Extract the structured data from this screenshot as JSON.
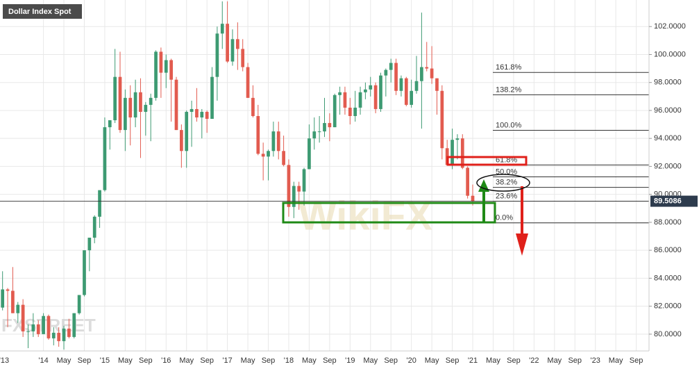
{
  "chart_data": {
    "type": "candlestick",
    "title": "Dollar Index Spot",
    "x": [
      "2013-05",
      "2013-06",
      "2013-07",
      "2013-08",
      "2013-09",
      "2013-10",
      "2013-11",
      "2013-12",
      "2014-01",
      "2014-02",
      "2014-03",
      "2014-04",
      "2014-05",
      "2014-06",
      "2014-07",
      "2014-08",
      "2014-09",
      "2014-10",
      "2014-11",
      "2014-12",
      "2015-01",
      "2015-02",
      "2015-03",
      "2015-04",
      "2015-05",
      "2015-06",
      "2015-07",
      "2015-08",
      "2015-09",
      "2015-10",
      "2015-11",
      "2015-12",
      "2016-01",
      "2016-02",
      "2016-03",
      "2016-04",
      "2016-05",
      "2016-06",
      "2016-07",
      "2016-08",
      "2016-09",
      "2016-10",
      "2016-11",
      "2016-12",
      "2017-01",
      "2017-02",
      "2017-03",
      "2017-04",
      "2017-05",
      "2017-06",
      "2017-07",
      "2017-08",
      "2017-09",
      "2017-10",
      "2017-11",
      "2017-12",
      "2018-01",
      "2018-02",
      "2018-03",
      "2018-04",
      "2018-05",
      "2018-06",
      "2018-07",
      "2018-08",
      "2018-09",
      "2018-10",
      "2018-11",
      "2018-12",
      "2019-01",
      "2019-02",
      "2019-03",
      "2019-04",
      "2019-05",
      "2019-06",
      "2019-07",
      "2019-08",
      "2019-09",
      "2019-10",
      "2019-11",
      "2019-12",
      "2020-01",
      "2020-02",
      "2020-03",
      "2020-04",
      "2020-05",
      "2020-06",
      "2020-07",
      "2020-08",
      "2020-09",
      "2020-10",
      "2020-11",
      "2020-12",
      "2021-01"
    ],
    "open": [
      81.9,
      83.2,
      83.1,
      81.5,
      82.1,
      80.2,
      80.2,
      80.7,
      80.0,
      81.3,
      79.7,
      80.1,
      79.5,
      80.4,
      79.8,
      81.5,
      82.8,
      86.0,
      86.9,
      88.4,
      90.3,
      94.8,
      95.3,
      98.4,
      94.6,
      96.9,
      95.5,
      97.3,
      95.9,
      96.4,
      96.9,
      100.2,
      98.7,
      99.6,
      98.2,
      94.6,
      93.1,
      95.9,
      96.1,
      95.5,
      95.9,
      95.4,
      98.4,
      101.5,
      102.2,
      99.5,
      101.1,
      100.4,
      99.1,
      96.9,
      95.6,
      92.9,
      92.7,
      93.1,
      94.5,
      93.1,
      92.1,
      89.1,
      90.6,
      90.2,
      91.8,
      94.0,
      94.5,
      94.5,
      95.1,
      94.8,
      97.1,
      97.3,
      96.2,
      95.6,
      96.2,
      97.3,
      97.5,
      97.8,
      96.1,
      98.5,
      98.9,
      99.4,
      97.4,
      98.3,
      96.4,
      97.4,
      98.1,
      99.1,
      99.0,
      98.3,
      97.4,
      93.3,
      92.1,
      93.9,
      94.0,
      91.9,
      89.9
    ],
    "high": [
      84.5,
      83.3,
      84.8,
      82.3,
      82.5,
      80.7,
      81.5,
      81.0,
      81.5,
      81.4,
      80.5,
      80.5,
      80.6,
      81.1,
      81.5,
      82.8,
      86.0,
      86.8,
      88.5,
      90.1,
      95.5,
      95.3,
      100.4,
      100.2,
      97.5,
      97.8,
      98.2,
      98.3,
      96.6,
      97.2,
      100.3,
      100.5,
      100.0,
      99.7,
      98.4,
      95.0,
      96.0,
      96.7,
      97.6,
      96.1,
      96.0,
      99.1,
      102.0,
      103.8,
      103.8,
      101.8,
      102.3,
      101.1,
      99.4,
      97.8,
      96.4,
      93.7,
      93.2,
      95.2,
      95.2,
      94.2,
      92.5,
      90.9,
      90.9,
      91.9,
      95.0,
      95.5,
      95.6,
      96.9,
      95.8,
      97.2,
      97.7,
      97.7,
      96.9,
      97.4,
      97.7,
      98.0,
      98.4,
      98.0,
      98.7,
      99.0,
      99.7,
      99.7,
      98.5,
      98.4,
      98.2,
      99.9,
      103.0,
      100.9,
      100.6,
      98.3,
      97.8,
      93.9,
      94.7,
      94.3,
      94.3,
      92.0,
      90.7
    ],
    "low": [
      81.7,
      80.5,
      81.5,
      80.8,
      79.8,
      79.0,
      79.8,
      79.8,
      80.0,
      79.6,
      79.2,
      79.1,
      78.9,
      79.7,
      79.7,
      81.4,
      82.7,
      84.5,
      86.5,
      87.6,
      90.2,
      93.2,
      95.1,
      94.4,
      93.1,
      93.5,
      94.8,
      92.6,
      94.2,
      93.8,
      96.7,
      96.9,
      97.6,
      95.2,
      94.6,
      91.9,
      91.9,
      93.4,
      95.2,
      94.0,
      94.4,
      95.4,
      96.7,
      100.4,
      99.4,
      99.2,
      98.9,
      98.8,
      96.9,
      95.5,
      92.8,
      91.0,
      91.0,
      92.7,
      92.5,
      92.0,
      88.4,
      88.3,
      88.9,
      89.2,
      91.8,
      93.2,
      93.7,
      94.1,
      93.8,
      94.8,
      95.7,
      95.7,
      95.0,
      95.2,
      95.7,
      96.8,
      97.0,
      95.8,
      95.9,
      97.0,
      98.0,
      97.1,
      97.0,
      96.3,
      96.2,
      97.2,
      94.7,
      98.8,
      97.9,
      95.7,
      92.5,
      92.1,
      91.8,
      92.5,
      91.8,
      89.7,
      89.2
    ],
    "close": [
      83.2,
      83.1,
      81.5,
      82.1,
      80.2,
      80.2,
      80.7,
      80.0,
      81.3,
      79.7,
      80.1,
      79.5,
      80.4,
      79.8,
      81.5,
      82.8,
      86.0,
      86.9,
      88.4,
      90.3,
      94.8,
      95.3,
      98.4,
      94.6,
      96.9,
      95.5,
      97.3,
      95.9,
      96.4,
      96.9,
      100.2,
      98.7,
      99.6,
      98.2,
      94.6,
      93.1,
      95.9,
      96.1,
      95.5,
      95.9,
      95.4,
      98.4,
      101.5,
      102.2,
      99.5,
      101.1,
      100.4,
      99.1,
      96.9,
      95.6,
      92.9,
      92.7,
      93.1,
      94.5,
      93.1,
      92.1,
      89.1,
      90.6,
      90.2,
      91.8,
      94.0,
      94.5,
      94.5,
      95.1,
      94.8,
      97.1,
      97.3,
      96.2,
      95.6,
      96.2,
      97.3,
      97.5,
      97.8,
      96.1,
      98.5,
      98.9,
      99.4,
      97.4,
      98.3,
      96.4,
      97.4,
      98.1,
      99.1,
      99.0,
      98.3,
      97.4,
      93.3,
      92.1,
      93.9,
      94.0,
      91.9,
      89.9,
      89.5
    ],
    "up_color": "#3d9a72",
    "down_color": "#e25b4f",
    "xlim": [
      "2013-05",
      "2023-11"
    ],
    "xticks": [
      {
        "value": "2013-01",
        "label": "'13"
      },
      {
        "value": "2014-01",
        "label": "'14"
      },
      {
        "value": "2014-05",
        "label": "May"
      },
      {
        "value": "2014-09",
        "label": "Sep"
      },
      {
        "value": "2015-01",
        "label": "'15"
      },
      {
        "value": "2015-05",
        "label": "May"
      },
      {
        "value": "2015-09",
        "label": "Sep"
      },
      {
        "value": "2016-01",
        "label": "'16"
      },
      {
        "value": "2016-05",
        "label": "May"
      },
      {
        "value": "2016-09",
        "label": "Sep"
      },
      {
        "value": "2017-01",
        "label": "'17"
      },
      {
        "value": "2017-05",
        "label": "May"
      },
      {
        "value": "2017-09",
        "label": "Sep"
      },
      {
        "value": "2018-01",
        "label": "'18"
      },
      {
        "value": "2018-05",
        "label": "May"
      },
      {
        "value": "2018-09",
        "label": "Sep"
      },
      {
        "value": "2019-01",
        "label": "'19"
      },
      {
        "value": "2019-05",
        "label": "May"
      },
      {
        "value": "2019-09",
        "label": "Sep"
      },
      {
        "value": "2020-01",
        "label": "'20"
      },
      {
        "value": "2020-05",
        "label": "May"
      },
      {
        "value": "2020-09",
        "label": "Sep"
      },
      {
        "value": "2021-01",
        "label": "'21"
      },
      {
        "value": "2021-05",
        "label": "May"
      },
      {
        "value": "2021-09",
        "label": "Sep"
      },
      {
        "value": "2022-01",
        "label": "'22"
      },
      {
        "value": "2022-05",
        "label": "May"
      },
      {
        "value": "2022-09",
        "label": "Sep"
      },
      {
        "value": "2023-01",
        "label": "'23"
      },
      {
        "value": "2023-05",
        "label": "May"
      },
      {
        "value": "2023-09",
        "label": "Sep"
      }
    ],
    "ylim": [
      78.8,
      103.9
    ],
    "yticks": [
      {
        "value": 80,
        "label": "80.0000"
      },
      {
        "value": 82,
        "label": "82.0000"
      },
      {
        "value": 84,
        "label": "84.0000"
      },
      {
        "value": 86,
        "label": "86.0000"
      },
      {
        "value": 88,
        "label": "88.0000"
      },
      {
        "value": 90,
        "label": "90.0000"
      },
      {
        "value": 92,
        "label": "92.0000"
      },
      {
        "value": 94,
        "label": "94.0000"
      },
      {
        "value": 96,
        "label": "96.0000"
      },
      {
        "value": 98,
        "label": "98.0000"
      },
      {
        "value": 100,
        "label": "100.0000"
      },
      {
        "value": 102,
        "label": "102.0000"
      }
    ],
    "grid": true,
    "last_price": 89.5086,
    "fibonacci": [
      {
        "value": 98.72,
        "label": "161.8%"
      },
      {
        "value": 97.12,
        "label": "138.2%"
      },
      {
        "value": 94.58,
        "label": "100.0%"
      },
      {
        "value": 92.1,
        "label": "61.8%"
      },
      {
        "value": 91.25,
        "label": "50.0%"
      },
      {
        "value": 90.5,
        "label": "38.2%"
      },
      {
        "value": 89.51,
        "label": "23.6%"
      },
      {
        "value": 87.96,
        "label": "0.0%"
      }
    ],
    "watermarks": [
      "WikiFX",
      "FXSTREET"
    ]
  }
}
